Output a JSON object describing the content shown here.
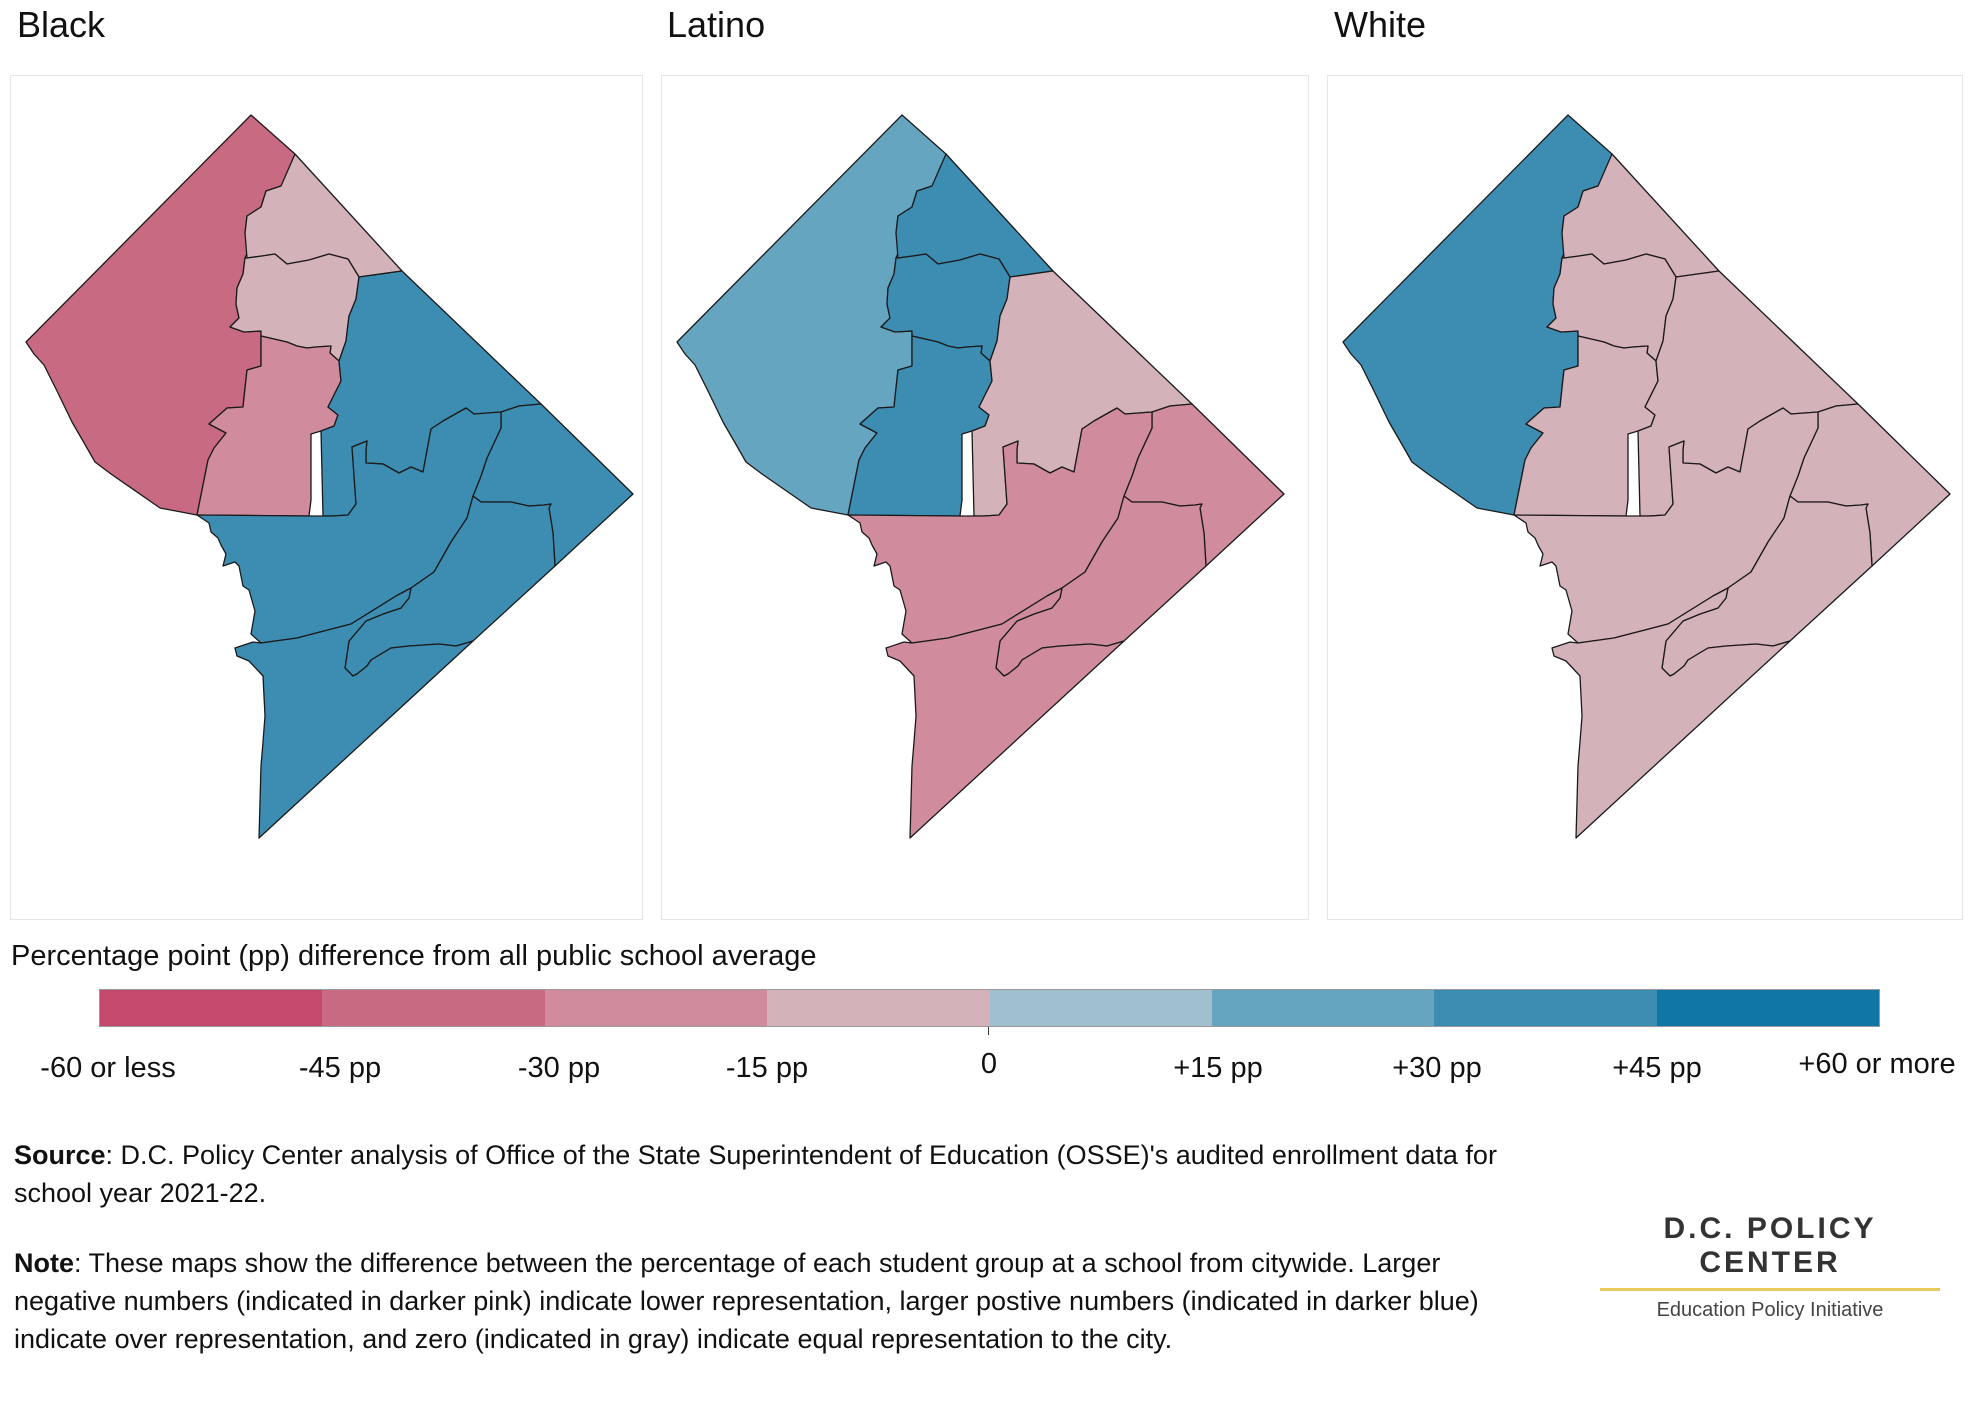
{
  "maps": [
    {
      "title": "Black",
      "data": [
        {
          "region": "northwest",
          "value": -45
        },
        {
          "region": "north-upper",
          "value": -15
        },
        {
          "region": "north-mid",
          "value": -15
        },
        {
          "region": "central",
          "value": -30
        },
        {
          "region": "northeast",
          "value": 30
        },
        {
          "region": "east",
          "value": 30
        },
        {
          "region": "south-central",
          "value": 30
        },
        {
          "region": "southeast",
          "value": 30
        },
        {
          "region": "far-south",
          "value": 30
        }
      ]
    },
    {
      "title": "Latino",
      "data": [
        {
          "region": "northwest",
          "value": 15
        },
        {
          "region": "north-upper",
          "value": 30
        },
        {
          "region": "north-mid",
          "value": 30
        },
        {
          "region": "central",
          "value": 30
        },
        {
          "region": "northeast",
          "value": -15
        },
        {
          "region": "east",
          "value": -30
        },
        {
          "region": "south-central",
          "value": -30
        },
        {
          "region": "southeast",
          "value": -30
        },
        {
          "region": "far-south",
          "value": -30
        }
      ]
    },
    {
      "title": "White",
      "data": [
        {
          "region": "northwest",
          "value": 30
        },
        {
          "region": "north-upper",
          "value": -15
        },
        {
          "region": "north-mid",
          "value": -15
        },
        {
          "region": "central",
          "value": -15
        },
        {
          "region": "northeast",
          "value": -15
        },
        {
          "region": "east",
          "value": -15
        },
        {
          "region": "south-central",
          "value": -15
        },
        {
          "region": "southeast",
          "value": -15
        },
        {
          "region": "far-south",
          "value": -15
        }
      ]
    }
  ],
  "legend": {
    "title": "Percentage point (pp) difference from all public school average",
    "colors": [
      "#c5496c",
      "#c96a83",
      "#d08b9c",
      "#d4b2ba",
      "#a0bfcf",
      "#65a5c0",
      "#3d8db3",
      "#0f76a6"
    ],
    "labels": [
      "-60 or less",
      "-45 pp",
      "-30 pp",
      "-15 pp",
      "0",
      "+15 pp",
      "+30 pp",
      "+45 pp",
      "+60 or more"
    ]
  },
  "source": {
    "label": "Source",
    "text": ": D.C. Policy Center analysis of Office of the State Superintendent of Education (OSSE)'s audited enrollment data for school year 2021-22."
  },
  "note": {
    "label": "Note",
    "text": ": These maps show the difference between the percentage of each student group at a school from citywide. Larger negative numbers (indicated in darker pink) indicate lower representation, larger postive numbers (indicated in darker blue) indicate over representation, and zero (indicated in gray) indicate equal representation to the city."
  },
  "logo": {
    "name": "D.C. POLICY CENTER",
    "subtitle": "Education Policy Initiative"
  }
}
